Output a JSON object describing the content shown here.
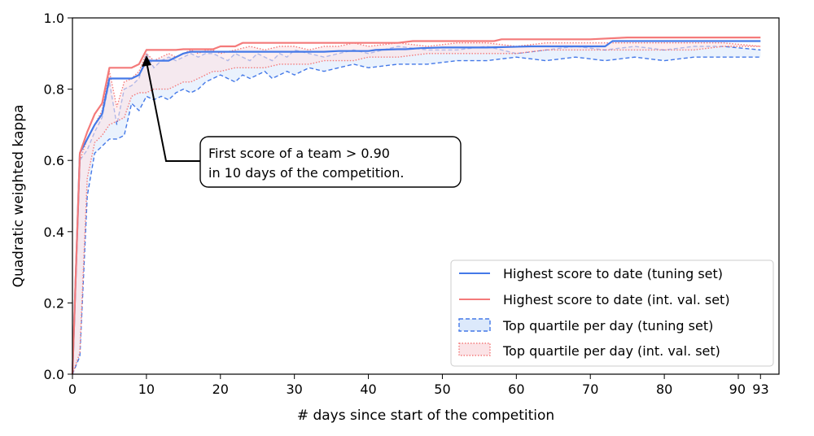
{
  "chart_data": {
    "type": "line",
    "xlabel": "# days since start of the competition",
    "ylabel": "Quadratic weighted kappa",
    "xlim": [
      0,
      95.5
    ],
    "ylim": [
      0,
      1.0
    ],
    "xticks": [
      0,
      10,
      20,
      30,
      40,
      50,
      60,
      70,
      80,
      90,
      93
    ],
    "yticks": [
      0.0,
      0.2,
      0.4,
      0.6,
      0.8,
      1.0
    ],
    "xtick_labels": [
      "0",
      "10",
      "20",
      "30",
      "40",
      "50",
      "60",
      "70",
      "80",
      "90",
      "93"
    ],
    "ytick_labels": [
      "0.0",
      "0.2",
      "0.4",
      "0.6",
      "0.8",
      "1.0"
    ],
    "grid": false,
    "legend_position": "bottom-right",
    "colors": {
      "tuning": "#4479e8",
      "intval": "#f47a7a",
      "band_tuning": "#dce9fb",
      "band_intval": "#fbe3e6"
    },
    "series": [
      {
        "name": "Highest score to date (tuning set)",
        "style": "line",
        "x": [
          0,
          1,
          2,
          3,
          4,
          5,
          6,
          7,
          8,
          9,
          10,
          11,
          12,
          13,
          14,
          15,
          16,
          20,
          21,
          22,
          23,
          25,
          26,
          28,
          30,
          33,
          34,
          36,
          40,
          41,
          44,
          45,
          47,
          50,
          52,
          56,
          62,
          70,
          72,
          73,
          80,
          85,
          93
        ],
        "y": [
          0.0,
          0.62,
          0.66,
          0.7,
          0.73,
          0.83,
          0.83,
          0.83,
          0.83,
          0.84,
          0.88,
          0.88,
          0.88,
          0.88,
          0.89,
          0.9,
          0.905,
          0.905,
          0.905,
          0.905,
          0.905,
          0.905,
          0.905,
          0.905,
          0.905,
          0.905,
          0.905,
          0.907,
          0.907,
          0.91,
          0.912,
          0.912,
          0.915,
          0.917,
          0.917,
          0.917,
          0.92,
          0.92,
          0.92,
          0.935,
          0.935,
          0.935,
          0.935
        ]
      },
      {
        "name": "Highest score to date (int. val. set)",
        "style": "line",
        "x": [
          0,
          1,
          2,
          3,
          4,
          5,
          6,
          7,
          8,
          9,
          10,
          11,
          14,
          15,
          19,
          20,
          22,
          23,
          24,
          30,
          35,
          44,
          46,
          50,
          57,
          58,
          70,
          75,
          93
        ],
        "y": [
          0.0,
          0.62,
          0.68,
          0.73,
          0.76,
          0.86,
          0.86,
          0.86,
          0.86,
          0.87,
          0.91,
          0.91,
          0.91,
          0.912,
          0.912,
          0.92,
          0.92,
          0.93,
          0.93,
          0.93,
          0.93,
          0.93,
          0.935,
          0.935,
          0.935,
          0.94,
          0.94,
          0.945,
          0.945
        ]
      },
      {
        "name": "Top quartile per day (tuning set)",
        "style": "band",
        "x": [
          0,
          1,
          2,
          3,
          4,
          5,
          6,
          7,
          8,
          9,
          10,
          11,
          12,
          13,
          14,
          15,
          16,
          17,
          18,
          19,
          20,
          21,
          22,
          23,
          24,
          25,
          26,
          27,
          28,
          29,
          30,
          32,
          34,
          36,
          38,
          40,
          44,
          48,
          52,
          56,
          60,
          64,
          68,
          72,
          76,
          80,
          84,
          88,
          93
        ],
        "upper": [
          0.0,
          0.6,
          0.63,
          0.68,
          0.72,
          0.82,
          0.7,
          0.8,
          0.81,
          0.83,
          0.9,
          0.86,
          0.88,
          0.89,
          0.88,
          0.89,
          0.9,
          0.89,
          0.9,
          0.9,
          0.89,
          0.88,
          0.9,
          0.89,
          0.88,
          0.9,
          0.89,
          0.88,
          0.9,
          0.89,
          0.91,
          0.9,
          0.89,
          0.9,
          0.91,
          0.9,
          0.92,
          0.91,
          0.91,
          0.92,
          0.9,
          0.91,
          0.92,
          0.91,
          0.92,
          0.91,
          0.92,
          0.92,
          0.91
        ],
        "lower": [
          0.0,
          0.05,
          0.5,
          0.62,
          0.64,
          0.66,
          0.66,
          0.67,
          0.76,
          0.74,
          0.78,
          0.77,
          0.78,
          0.77,
          0.79,
          0.8,
          0.79,
          0.8,
          0.82,
          0.83,
          0.84,
          0.83,
          0.82,
          0.84,
          0.83,
          0.84,
          0.85,
          0.83,
          0.84,
          0.85,
          0.84,
          0.86,
          0.85,
          0.86,
          0.87,
          0.86,
          0.87,
          0.87,
          0.88,
          0.88,
          0.89,
          0.88,
          0.89,
          0.88,
          0.89,
          0.88,
          0.89,
          0.89,
          0.89
        ]
      },
      {
        "name": "Top quartile per day (int. val. set)",
        "style": "band",
        "x": [
          0,
          1,
          2,
          3,
          4,
          5,
          6,
          7,
          8,
          9,
          10,
          11,
          12,
          13,
          14,
          15,
          16,
          17,
          18,
          19,
          20,
          22,
          24,
          26,
          28,
          30,
          32,
          34,
          36,
          38,
          40,
          44,
          48,
          52,
          56,
          60,
          64,
          68,
          72,
          76,
          80,
          84,
          88,
          93
        ],
        "upper": [
          0.0,
          0.6,
          0.66,
          0.7,
          0.74,
          0.85,
          0.75,
          0.82,
          0.83,
          0.85,
          0.9,
          0.88,
          0.89,
          0.9,
          0.89,
          0.9,
          0.91,
          0.9,
          0.91,
          0.91,
          0.9,
          0.91,
          0.92,
          0.91,
          0.92,
          0.92,
          0.91,
          0.92,
          0.92,
          0.93,
          0.92,
          0.93,
          0.92,
          0.93,
          0.93,
          0.92,
          0.93,
          0.93,
          0.93,
          0.93,
          0.93,
          0.93,
          0.93,
          0.92
        ],
        "lower": [
          0.0,
          0.06,
          0.55,
          0.65,
          0.67,
          0.7,
          0.71,
          0.72,
          0.78,
          0.79,
          0.79,
          0.8,
          0.8,
          0.8,
          0.81,
          0.82,
          0.82,
          0.83,
          0.84,
          0.85,
          0.85,
          0.86,
          0.86,
          0.86,
          0.87,
          0.87,
          0.87,
          0.88,
          0.88,
          0.88,
          0.89,
          0.89,
          0.9,
          0.9,
          0.9,
          0.9,
          0.91,
          0.91,
          0.91,
          0.91,
          0.91,
          0.91,
          0.92,
          0.92
        ]
      }
    ],
    "annotation": {
      "text_line1": "First score of a team > 0.90",
      "text_line2": "in 10 days of the competition.",
      "point": [
        10,
        0.9
      ]
    }
  }
}
